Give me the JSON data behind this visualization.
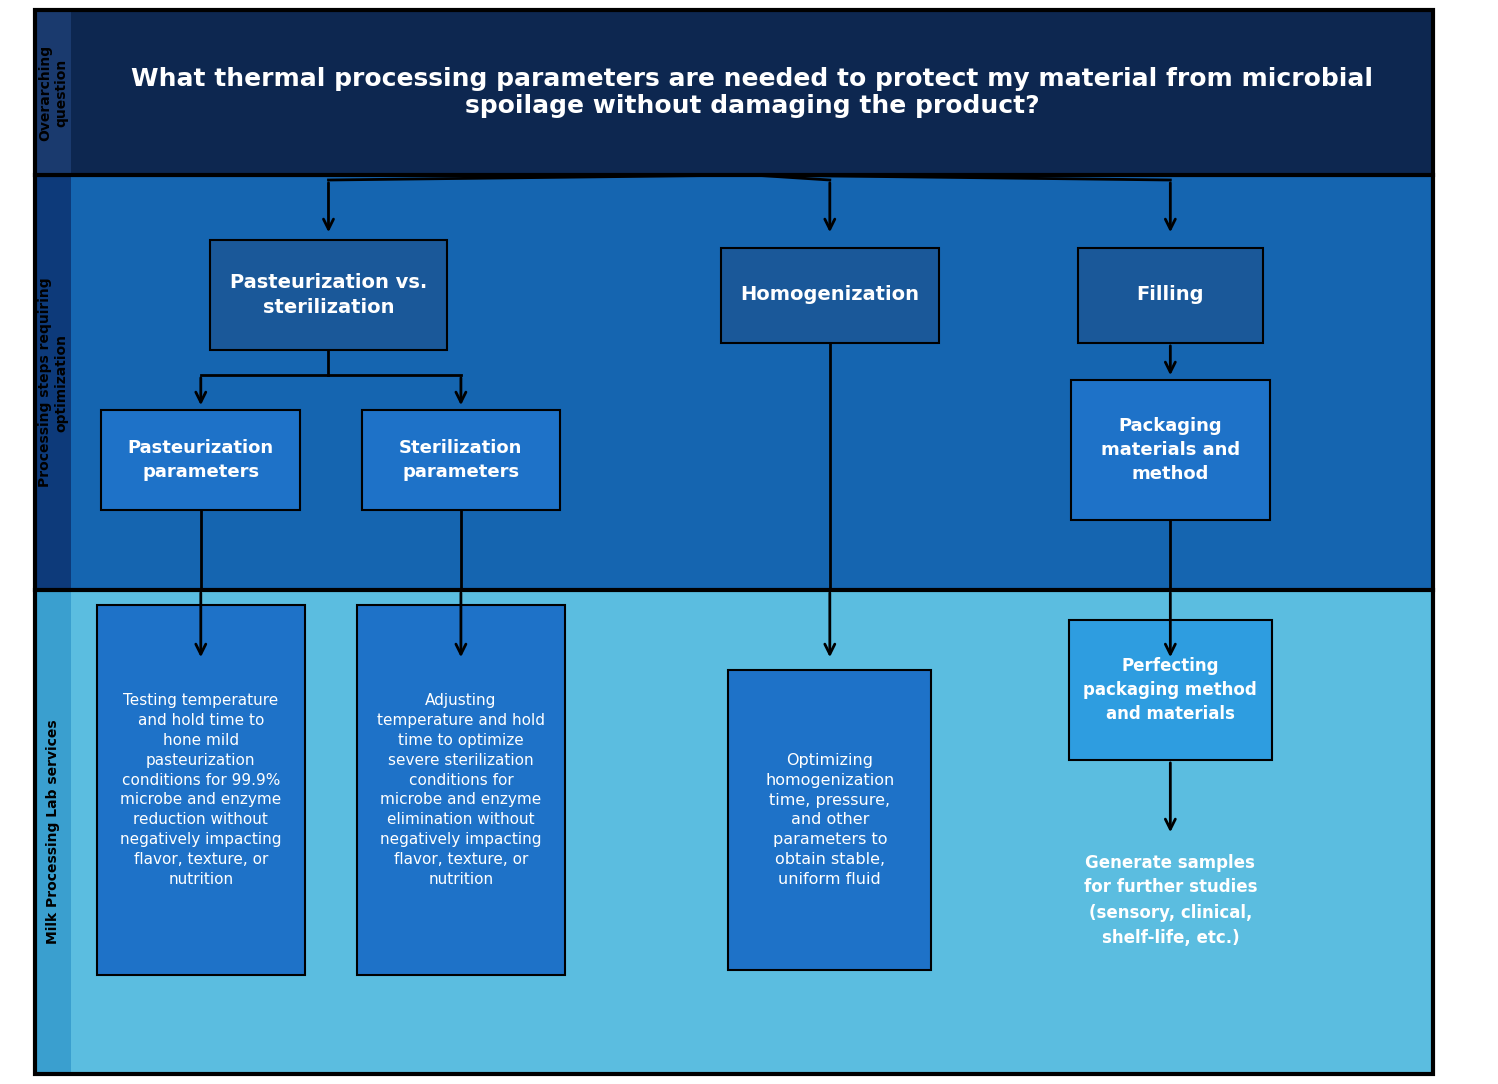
{
  "title": "What thermal processing parameters are needed to protect my material from microbial\nspoilage without damaging the product?",
  "bg_top": "#0d2750",
  "bg_mid": "#1565b0",
  "bg_bot": "#5bbde0",
  "label_top_color": "#000000",
  "label_mid_color": "#000000",
  "label_bot_color": "#000000",
  "label_top": "Overarching\nquestion",
  "label_mid": "Processing steps requiring\noptimization",
  "label_bot": "Milk Processing Lab services",
  "text_color": "#ffffff",
  "box_dark": "#1a5899",
  "box_mid": "#1e72c8",
  "box_bright": "#2e9de0",
  "border_color": "#000000",
  "divider_color": "#000000",
  "arrow_color": "#000000"
}
